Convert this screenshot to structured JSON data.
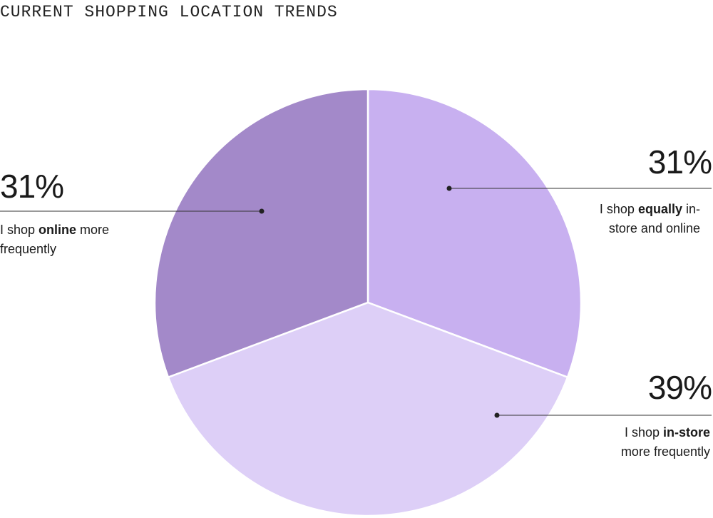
{
  "chart_data": {
    "type": "pie",
    "title": "CURRENT SHOPPING LOCATION TRENDS",
    "values": [
      31,
      39,
      31
    ],
    "value_labels": [
      "31%",
      "39%",
      "31%"
    ],
    "colors": [
      "#c8b0f0",
      "#ddcff7",
      "#a389c9"
    ],
    "labels": [
      [
        "I shop ",
        "equally",
        " in-store and online"
      ],
      [
        "I shop ",
        "in-store",
        " more frequently"
      ],
      [
        "I shop ",
        "online",
        " more frequently"
      ]
    ]
  }
}
